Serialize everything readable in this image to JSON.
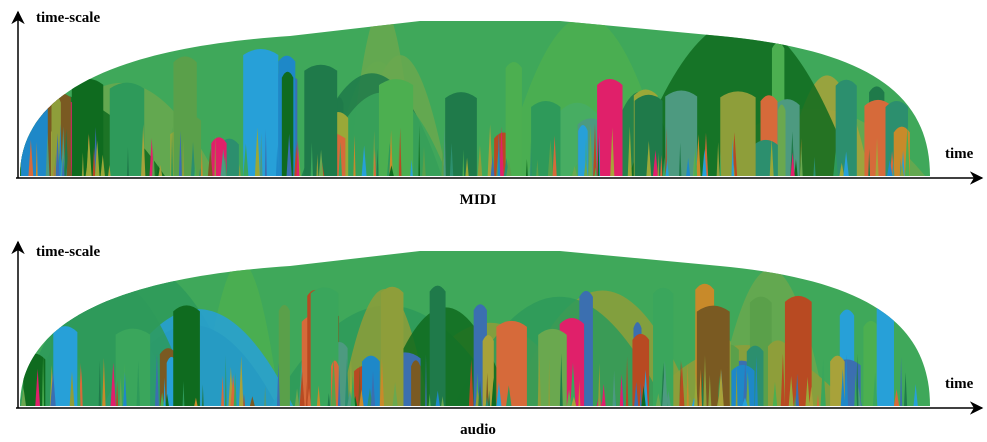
{
  "panels": [
    {
      "y_axis_label": "time-scale",
      "x_axis_label": "time",
      "caption": "MIDI"
    },
    {
      "y_axis_label": "time-scale",
      "x_axis_label": "time",
      "caption": "audio"
    }
  ]
}
